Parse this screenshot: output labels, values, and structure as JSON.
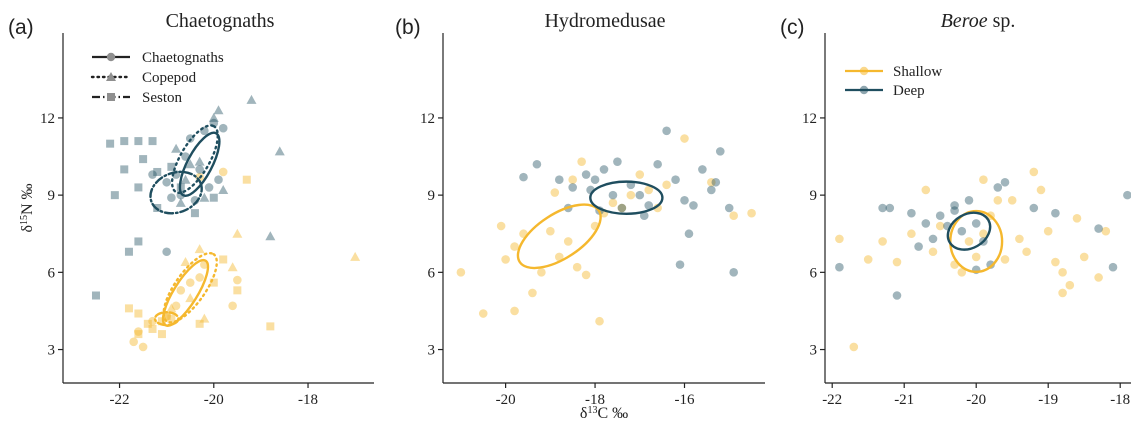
{
  "figure": {
    "colors": {
      "shallow": "#F5B82E",
      "deep": "#1F4E5F",
      "axis": "#222222"
    }
  },
  "chart_data": [
    {
      "type": "scatter",
      "panel_label": "(a)",
      "title": "Chaetognaths",
      "xlabel": "",
      "ylabel": "δ15N ‰",
      "xlim": [
        -23.2,
        -16.6
      ],
      "ylim": [
        1.7,
        15.3
      ],
      "xticks": [
        -22,
        -20,
        -18
      ],
      "yticks": [
        3,
        6,
        9,
        12
      ],
      "grid": false,
      "legend": {
        "placement": "top-left",
        "entries": [
          "Chaetognaths",
          "Copepod",
          "Seston"
        ],
        "linestyles": [
          "solid",
          "dotted",
          "dashdot"
        ],
        "markers": [
          "circle",
          "triangle",
          "square"
        ]
      },
      "series": [
        {
          "depth": "deep",
          "marker": "circle",
          "linestyle": "solid",
          "points": [
            [
              -20.5,
              11.2
            ],
            [
              -20.2,
              11.5
            ],
            [
              -20.0,
              11.8
            ],
            [
              -19.8,
              11.6
            ],
            [
              -20.6,
              10.5
            ],
            [
              -20.3,
              10.0
            ],
            [
              -20.8,
              9.8
            ],
            [
              -20.1,
              9.3
            ],
            [
              -20.9,
              8.9
            ],
            [
              -19.9,
              9.6
            ],
            [
              -20.4,
              8.8
            ],
            [
              -21.0,
              9.5
            ],
            [
              -21.3,
              9.8
            ],
            [
              -21.0,
              6.8
            ],
            [
              -20.7,
              9.0
            ]
          ],
          "ellipse": {
            "cx": -20.3,
            "cy": 10.2,
            "rx": 1.2,
            "ry": 0.42,
            "angle_deg": -62
          }
        },
        {
          "depth": "deep",
          "marker": "triangle",
          "linestyle": "dotted",
          "points": [
            [
              -19.9,
              12.3
            ],
            [
              -19.2,
              12.7
            ],
            [
              -20.8,
              10.8
            ],
            [
              -20.5,
              10.2
            ],
            [
              -20.3,
              10.3
            ],
            [
              -20.6,
              9.6
            ],
            [
              -20.2,
              8.9
            ],
            [
              -20.7,
              8.7
            ],
            [
              -19.8,
              9.2
            ],
            [
              -18.6,
              10.7
            ],
            [
              -18.8,
              7.4
            ],
            [
              -20.0,
              12.0
            ]
          ],
          "ellipse": {
            "cx": -20.4,
            "cy": 10.4,
            "rx": 1.3,
            "ry": 0.5,
            "angle_deg": -60
          }
        },
        {
          "depth": "deep",
          "marker": "square",
          "linestyle": "dashdot",
          "points": [
            [
              -22.2,
              11.0
            ],
            [
              -21.9,
              11.1
            ],
            [
              -21.6,
              11.1
            ],
            [
              -21.3,
              11.1
            ],
            [
              -21.9,
              10.0
            ],
            [
              -21.5,
              10.4
            ],
            [
              -21.2,
              9.9
            ],
            [
              -22.1,
              9.0
            ],
            [
              -21.6,
              9.3
            ],
            [
              -21.2,
              8.5
            ],
            [
              -20.9,
              10.1
            ],
            [
              -20.7,
              9.3
            ],
            [
              -20.4,
              8.3
            ],
            [
              -21.6,
              7.2
            ],
            [
              -21.8,
              6.8
            ],
            [
              -22.5,
              5.1
            ],
            [
              -20.0,
              8.9
            ]
          ],
          "ellipse": {
            "cx": -20.8,
            "cy": 9.1,
            "rx": 0.9,
            "ry": 0.68,
            "angle_deg": -20
          }
        },
        {
          "depth": "shallow",
          "marker": "circle",
          "linestyle": "solid",
          "points": [
            [
              -20.2,
              6.3
            ],
            [
              -20.5,
              5.6
            ],
            [
              -20.7,
              5.3
            ],
            [
              -20.8,
              4.7
            ],
            [
              -21.0,
              4.3
            ],
            [
              -21.3,
              4.1
            ],
            [
              -21.6,
              3.7
            ],
            [
              -21.5,
              3.1
            ],
            [
              -21.7,
              3.3
            ],
            [
              -20.3,
              5.8
            ],
            [
              -19.6,
              4.7
            ],
            [
              -19.5,
              5.7
            ],
            [
              -20.3,
              9.7
            ],
            [
              -19.8,
              9.9
            ]
          ],
          "ellipse": {
            "cx": -20.6,
            "cy": 5.2,
            "rx": 1.3,
            "ry": 0.4,
            "angle_deg": -58
          }
        },
        {
          "depth": "shallow",
          "marker": "triangle",
          "linestyle": "dotted",
          "points": [
            [
              -20.6,
              6.4
            ],
            [
              -20.3,
              6.9
            ],
            [
              -20.9,
              4.6
            ],
            [
              -20.2,
              4.2
            ],
            [
              -19.5,
              7.5
            ],
            [
              -19.6,
              6.2
            ],
            [
              -17.0,
              6.6
            ],
            [
              -20.5,
              5.0
            ]
          ],
          "ellipse": {
            "cx": -20.5,
            "cy": 5.4,
            "rx": 1.4,
            "ry": 0.52,
            "angle_deg": -55
          }
        },
        {
          "depth": "shallow",
          "marker": "square",
          "linestyle": "dashdot",
          "points": [
            [
              -21.8,
              4.6
            ],
            [
              -21.6,
              4.4
            ],
            [
              -21.4,
              4.0
            ],
            [
              -21.3,
              3.8
            ],
            [
              -21.6,
              3.6
            ],
            [
              -21.1,
              4.1
            ],
            [
              -21.1,
              3.6
            ],
            [
              -20.9,
              4.2
            ],
            [
              -20.3,
              4.0
            ],
            [
              -20.0,
              5.6
            ],
            [
              -19.8,
              6.5
            ],
            [
              -19.5,
              5.3
            ],
            [
              -18.8,
              3.9
            ],
            [
              -19.3,
              9.6
            ],
            [
              -21.0,
              4.3
            ]
          ],
          "ellipse": {
            "cx": -21.0,
            "cy": 4.2,
            "rx": 0.4,
            "ry": 0.22,
            "angle_deg": 0
          }
        }
      ]
    },
    {
      "type": "scatter",
      "panel_label": "(b)",
      "title": "Hydromedusae",
      "xlabel": "δ13C ‰",
      "ylabel": "",
      "xlim": [
        -21.4,
        -14.2
      ],
      "ylim": [
        1.7,
        15.3
      ],
      "xticks": [
        -20,
        -18,
        -16
      ],
      "yticks": [
        3,
        6,
        9,
        12
      ],
      "grid": false,
      "series": [
        {
          "depth": "shallow",
          "marker": "circle",
          "points": [
            [
              -21.0,
              6.0
            ],
            [
              -20.5,
              4.4
            ],
            [
              -19.8,
              4.5
            ],
            [
              -19.8,
              7.0
            ],
            [
              -20.0,
              6.5
            ],
            [
              -19.4,
              5.2
            ],
            [
              -19.2,
              6.0
            ],
            [
              -19.0,
              7.6
            ],
            [
              -18.8,
              6.6
            ],
            [
              -18.6,
              7.2
            ],
            [
              -18.4,
              6.2
            ],
            [
              -18.2,
              5.9
            ],
            [
              -18.0,
              7.8
            ],
            [
              -17.8,
              8.3
            ],
            [
              -17.6,
              8.7
            ],
            [
              -17.4,
              8.5
            ],
            [
              -17.2,
              9.0
            ],
            [
              -17.0,
              9.8
            ],
            [
              -16.8,
              9.2
            ],
            [
              -16.6,
              8.5
            ],
            [
              -16.4,
              9.4
            ],
            [
              -16.0,
              11.2
            ],
            [
              -15.4,
              9.5
            ],
            [
              -14.9,
              8.2
            ],
            [
              -14.5,
              8.3
            ],
            [
              -17.9,
              4.1
            ],
            [
              -18.9,
              9.1
            ],
            [
              -18.3,
              10.3
            ],
            [
              -20.1,
              7.8
            ],
            [
              -19.6,
              7.5
            ],
            [
              -18.5,
              9.6
            ]
          ],
          "ellipse": {
            "cx": -18.8,
            "cy": 7.4,
            "rx": 1.7,
            "ry": 0.8,
            "angle_deg": -33
          }
        },
        {
          "depth": "deep",
          "marker": "circle",
          "points": [
            [
              -19.3,
              10.2
            ],
            [
              -18.8,
              9.6
            ],
            [
              -18.5,
              9.3
            ],
            [
              -18.2,
              9.8
            ],
            [
              -18.0,
              9.6
            ],
            [
              -17.8,
              10.0
            ],
            [
              -17.6,
              9.0
            ],
            [
              -17.4,
              8.5
            ],
            [
              -17.2,
              9.4
            ],
            [
              -17.0,
              9.0
            ],
            [
              -16.8,
              8.6
            ],
            [
              -16.6,
              10.2
            ],
            [
              -16.4,
              11.5
            ],
            [
              -16.2,
              9.6
            ],
            [
              -16.0,
              8.8
            ],
            [
              -15.8,
              8.6
            ],
            [
              -15.6,
              10.0
            ],
            [
              -15.4,
              9.2
            ],
            [
              -15.2,
              10.7
            ],
            [
              -15.0,
              8.5
            ],
            [
              -16.1,
              6.3
            ],
            [
              -14.9,
              6.0
            ],
            [
              -17.9,
              8.4
            ],
            [
              -18.6,
              8.5
            ],
            [
              -19.6,
              9.7
            ],
            [
              -16.9,
              8.2
            ],
            [
              -17.5,
              10.3
            ],
            [
              -15.9,
              7.5
            ],
            [
              -15.3,
              9.5
            ],
            [
              -18.1,
              9.2
            ]
          ],
          "ellipse": {
            "cx": -17.3,
            "cy": 8.9,
            "rx": 1.3,
            "ry": 0.58,
            "angle_deg": 0
          }
        }
      ]
    },
    {
      "type": "scatter",
      "panel_label": "(c)",
      "title": "Beroe sp.",
      "xlabel": "",
      "ylabel": "",
      "xlim": [
        -22.1,
        -17.85
      ],
      "ylim": [
        1.7,
        15.3
      ],
      "xticks": [
        -22,
        -21,
        -20,
        -19,
        -18
      ],
      "yticks": [
        3,
        6,
        9,
        12
      ],
      "grid": false,
      "legend": {
        "placement": "top-left",
        "entries": [
          "Shallow",
          "Deep"
        ]
      },
      "series": [
        {
          "name": "Shallow",
          "depth": "shallow",
          "marker": "circle",
          "points": [
            [
              -21.9,
              7.3
            ],
            [
              -21.5,
              6.5
            ],
            [
              -21.7,
              3.1
            ],
            [
              -21.3,
              7.2
            ],
            [
              -20.9,
              7.5
            ],
            [
              -20.6,
              6.8
            ],
            [
              -20.5,
              7.8
            ],
            [
              -20.3,
              6.3
            ],
            [
              -20.2,
              6.0
            ],
            [
              -20.1,
              7.2
            ],
            [
              -20.0,
              6.6
            ],
            [
              -19.9,
              7.5
            ],
            [
              -19.8,
              8.2
            ],
            [
              -19.6,
              6.5
            ],
            [
              -19.5,
              8.8
            ],
            [
              -19.4,
              7.3
            ],
            [
              -19.3,
              6.8
            ],
            [
              -19.2,
              9.9
            ],
            [
              -19.1,
              9.2
            ],
            [
              -19.0,
              7.6
            ],
            [
              -18.9,
              6.4
            ],
            [
              -18.8,
              6.0
            ],
            [
              -18.7,
              5.5
            ],
            [
              -18.6,
              8.1
            ],
            [
              -18.5,
              6.6
            ],
            [
              -18.3,
              5.8
            ],
            [
              -18.2,
              7.6
            ],
            [
              -20.7,
              9.2
            ],
            [
              -19.9,
              9.6
            ],
            [
              -21.1,
              6.4
            ],
            [
              -18.8,
              5.2
            ],
            [
              -19.7,
              8.8
            ]
          ],
          "ellipse": {
            "cx": -20.0,
            "cy": 7.2,
            "rx": 0.58,
            "ry": 0.68,
            "angle_deg": 0
          }
        },
        {
          "name": "Deep",
          "depth": "deep",
          "marker": "circle",
          "points": [
            [
              -21.9,
              6.2
            ],
            [
              -21.3,
              8.5
            ],
            [
              -21.2,
              8.5
            ],
            [
              -21.1,
              5.1
            ],
            [
              -20.9,
              8.3
            ],
            [
              -20.8,
              7.0
            ],
            [
              -20.7,
              7.9
            ],
            [
              -20.6,
              7.3
            ],
            [
              -20.5,
              8.2
            ],
            [
              -20.4,
              7.8
            ],
            [
              -20.3,
              8.4
            ],
            [
              -20.2,
              7.6
            ],
            [
              -20.1,
              8.8
            ],
            [
              -20.0,
              6.1
            ],
            [
              -19.9,
              7.2
            ],
            [
              -19.8,
              6.3
            ],
            [
              -19.7,
              9.3
            ],
            [
              -19.6,
              9.5
            ],
            [
              -19.2,
              8.5
            ],
            [
              -18.9,
              8.3
            ],
            [
              -18.3,
              7.7
            ],
            [
              -18.1,
              6.2
            ],
            [
              -17.9,
              9.0
            ],
            [
              -20.3,
              8.6
            ],
            [
              -20.0,
              7.9
            ]
          ],
          "ellipse": {
            "cx": -20.1,
            "cy": 7.6,
            "rx": 0.5,
            "ry": 0.38,
            "angle_deg": -30
          }
        }
      ]
    }
  ]
}
